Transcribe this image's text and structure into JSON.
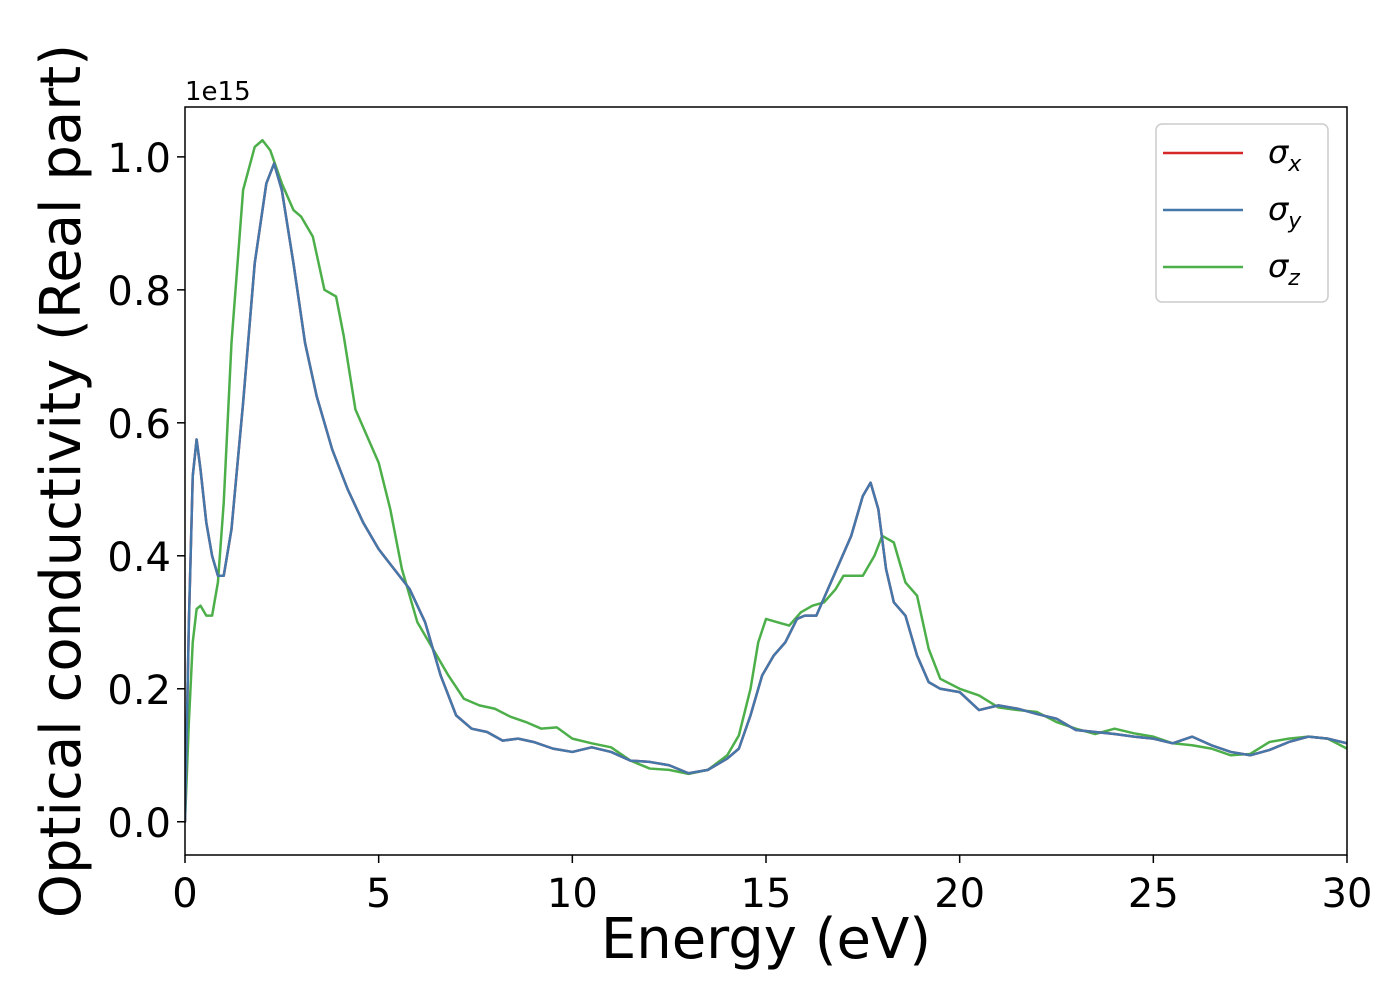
{
  "chart_data": {
    "type": "line",
    "xlabel": "Energy (eV)",
    "ylabel": "Optical conductivity (Real part)",
    "y_offset_text": "1e15",
    "xlim": [
      0,
      30
    ],
    "ylim": [
      -0.05,
      1.075
    ],
    "x_ticks": [
      0,
      5,
      10,
      15,
      20,
      25,
      30
    ],
    "x_tick_labels": [
      "0",
      "5",
      "10",
      "15",
      "20",
      "25",
      "30"
    ],
    "y_ticks": [
      0.0,
      0.2,
      0.4,
      0.6,
      0.8,
      1.0
    ],
    "y_tick_labels": [
      "0.0",
      "0.2",
      "0.4",
      "0.6",
      "0.8",
      "1.0"
    ],
    "grid": false,
    "legend_position": "top-right",
    "colors": {
      "sigma_x": "#d62728",
      "sigma_y": "#4477aa",
      "sigma_z": "#4daf4a"
    },
    "series": [
      {
        "name": "σx",
        "symbol": "σ",
        "subscript": "x",
        "color": "#d62728",
        "x": [
          0,
          0.1,
          0.2,
          0.3,
          0.4,
          0.55,
          0.7,
          0.85,
          1.0,
          1.2,
          1.5,
          1.8,
          2.1,
          2.3,
          2.5,
          2.8,
          3.1,
          3.4,
          3.8,
          4.2,
          4.6,
          5.0,
          5.4,
          5.8,
          6.2,
          6.6,
          7.0,
          7.4,
          7.8,
          8.2,
          8.6,
          9.0,
          9.5,
          10.0,
          10.5,
          11.0,
          11.5,
          12.0,
          12.5,
          13.0,
          13.5,
          14.0,
          14.3,
          14.6,
          14.9,
          15.2,
          15.5,
          15.8,
          16.0,
          16.3,
          16.6,
          16.9,
          17.2,
          17.5,
          17.7,
          17.9,
          18.1,
          18.3,
          18.6,
          18.9,
          19.2,
          19.5,
          20.0,
          20.5,
          21.0,
          21.5,
          22.0,
          22.5,
          23.0,
          23.5,
          24.0,
          24.5,
          25.0,
          25.5,
          26.0,
          26.5,
          27.0,
          27.5,
          28.0,
          28.5,
          29.0,
          29.5,
          30.0
        ],
        "y": [
          0.0,
          0.3,
          0.52,
          0.575,
          0.53,
          0.45,
          0.4,
          0.37,
          0.37,
          0.44,
          0.63,
          0.84,
          0.96,
          0.99,
          0.95,
          0.84,
          0.72,
          0.64,
          0.56,
          0.5,
          0.45,
          0.41,
          0.38,
          0.35,
          0.3,
          0.22,
          0.16,
          0.14,
          0.135,
          0.122,
          0.125,
          0.12,
          0.11,
          0.105,
          0.112,
          0.105,
          0.092,
          0.09,
          0.085,
          0.073,
          0.078,
          0.095,
          0.11,
          0.16,
          0.22,
          0.25,
          0.27,
          0.305,
          0.31,
          0.31,
          0.35,
          0.39,
          0.43,
          0.49,
          0.51,
          0.47,
          0.38,
          0.33,
          0.31,
          0.25,
          0.21,
          0.2,
          0.195,
          0.168,
          0.175,
          0.17,
          0.162,
          0.155,
          0.138,
          0.135,
          0.132,
          0.128,
          0.125,
          0.118,
          0.128,
          0.115,
          0.105,
          0.1,
          0.108,
          0.12,
          0.128,
          0.125,
          0.118
        ]
      },
      {
        "name": "σy",
        "symbol": "σ",
        "subscript": "y",
        "color": "#4477aa",
        "x": [
          0,
          0.1,
          0.2,
          0.3,
          0.4,
          0.55,
          0.7,
          0.85,
          1.0,
          1.2,
          1.5,
          1.8,
          2.1,
          2.3,
          2.5,
          2.8,
          3.1,
          3.4,
          3.8,
          4.2,
          4.6,
          5.0,
          5.4,
          5.8,
          6.2,
          6.6,
          7.0,
          7.4,
          7.8,
          8.2,
          8.6,
          9.0,
          9.5,
          10.0,
          10.5,
          11.0,
          11.5,
          12.0,
          12.5,
          13.0,
          13.5,
          14.0,
          14.3,
          14.6,
          14.9,
          15.2,
          15.5,
          15.8,
          16.0,
          16.3,
          16.6,
          16.9,
          17.2,
          17.5,
          17.7,
          17.9,
          18.1,
          18.3,
          18.6,
          18.9,
          19.2,
          19.5,
          20.0,
          20.5,
          21.0,
          21.5,
          22.0,
          22.5,
          23.0,
          23.5,
          24.0,
          24.5,
          25.0,
          25.5,
          26.0,
          26.5,
          27.0,
          27.5,
          28.0,
          28.5,
          29.0,
          29.5,
          30.0
        ],
        "y": [
          0.0,
          0.3,
          0.52,
          0.575,
          0.53,
          0.45,
          0.4,
          0.37,
          0.37,
          0.44,
          0.63,
          0.84,
          0.96,
          0.99,
          0.95,
          0.84,
          0.72,
          0.64,
          0.56,
          0.5,
          0.45,
          0.41,
          0.38,
          0.35,
          0.3,
          0.22,
          0.16,
          0.14,
          0.135,
          0.122,
          0.125,
          0.12,
          0.11,
          0.105,
          0.112,
          0.105,
          0.092,
          0.09,
          0.085,
          0.073,
          0.078,
          0.095,
          0.11,
          0.16,
          0.22,
          0.25,
          0.27,
          0.305,
          0.31,
          0.31,
          0.35,
          0.39,
          0.43,
          0.49,
          0.51,
          0.47,
          0.38,
          0.33,
          0.31,
          0.25,
          0.21,
          0.2,
          0.195,
          0.168,
          0.175,
          0.17,
          0.162,
          0.155,
          0.138,
          0.135,
          0.132,
          0.128,
          0.125,
          0.118,
          0.128,
          0.115,
          0.105,
          0.1,
          0.108,
          0.12,
          0.128,
          0.125,
          0.118
        ]
      },
      {
        "name": "σz",
        "symbol": "σ",
        "subscript": "z",
        "color": "#4daf4a",
        "x": [
          0,
          0.1,
          0.2,
          0.3,
          0.4,
          0.55,
          0.7,
          0.85,
          1.0,
          1.2,
          1.5,
          1.8,
          2.0,
          2.2,
          2.5,
          2.8,
          3.0,
          3.3,
          3.6,
          3.9,
          4.1,
          4.4,
          4.7,
          5.0,
          5.3,
          5.6,
          6.0,
          6.4,
          6.8,
          7.2,
          7.6,
          8.0,
          8.4,
          8.8,
          9.2,
          9.6,
          10.0,
          10.5,
          11.0,
          11.5,
          12.0,
          12.5,
          13.0,
          13.5,
          14.0,
          14.3,
          14.6,
          14.8,
          15.0,
          15.3,
          15.6,
          15.9,
          16.2,
          16.5,
          16.8,
          17.0,
          17.2,
          17.5,
          17.8,
          18.0,
          18.3,
          18.6,
          18.9,
          19.2,
          19.5,
          20.0,
          20.5,
          21.0,
          21.5,
          22.0,
          22.5,
          23.0,
          23.5,
          24.0,
          24.5,
          25.0,
          25.5,
          26.0,
          26.5,
          27.0,
          27.5,
          28.0,
          28.5,
          29.0,
          29.5,
          30.0
        ],
        "y": [
          0.0,
          0.15,
          0.27,
          0.32,
          0.325,
          0.31,
          0.31,
          0.36,
          0.48,
          0.72,
          0.95,
          1.015,
          1.025,
          1.01,
          0.96,
          0.92,
          0.91,
          0.88,
          0.8,
          0.79,
          0.73,
          0.62,
          0.58,
          0.54,
          0.47,
          0.38,
          0.3,
          0.26,
          0.22,
          0.185,
          0.175,
          0.17,
          0.158,
          0.15,
          0.14,
          0.142,
          0.125,
          0.118,
          0.112,
          0.092,
          0.08,
          0.078,
          0.072,
          0.078,
          0.1,
          0.13,
          0.2,
          0.27,
          0.305,
          0.3,
          0.295,
          0.315,
          0.325,
          0.33,
          0.35,
          0.37,
          0.37,
          0.37,
          0.4,
          0.43,
          0.42,
          0.36,
          0.34,
          0.26,
          0.215,
          0.2,
          0.19,
          0.172,
          0.168,
          0.165,
          0.15,
          0.14,
          0.132,
          0.14,
          0.133,
          0.128,
          0.118,
          0.115,
          0.11,
          0.1,
          0.102,
          0.12,
          0.125,
          0.128,
          0.125,
          0.11
        ]
      }
    ]
  }
}
